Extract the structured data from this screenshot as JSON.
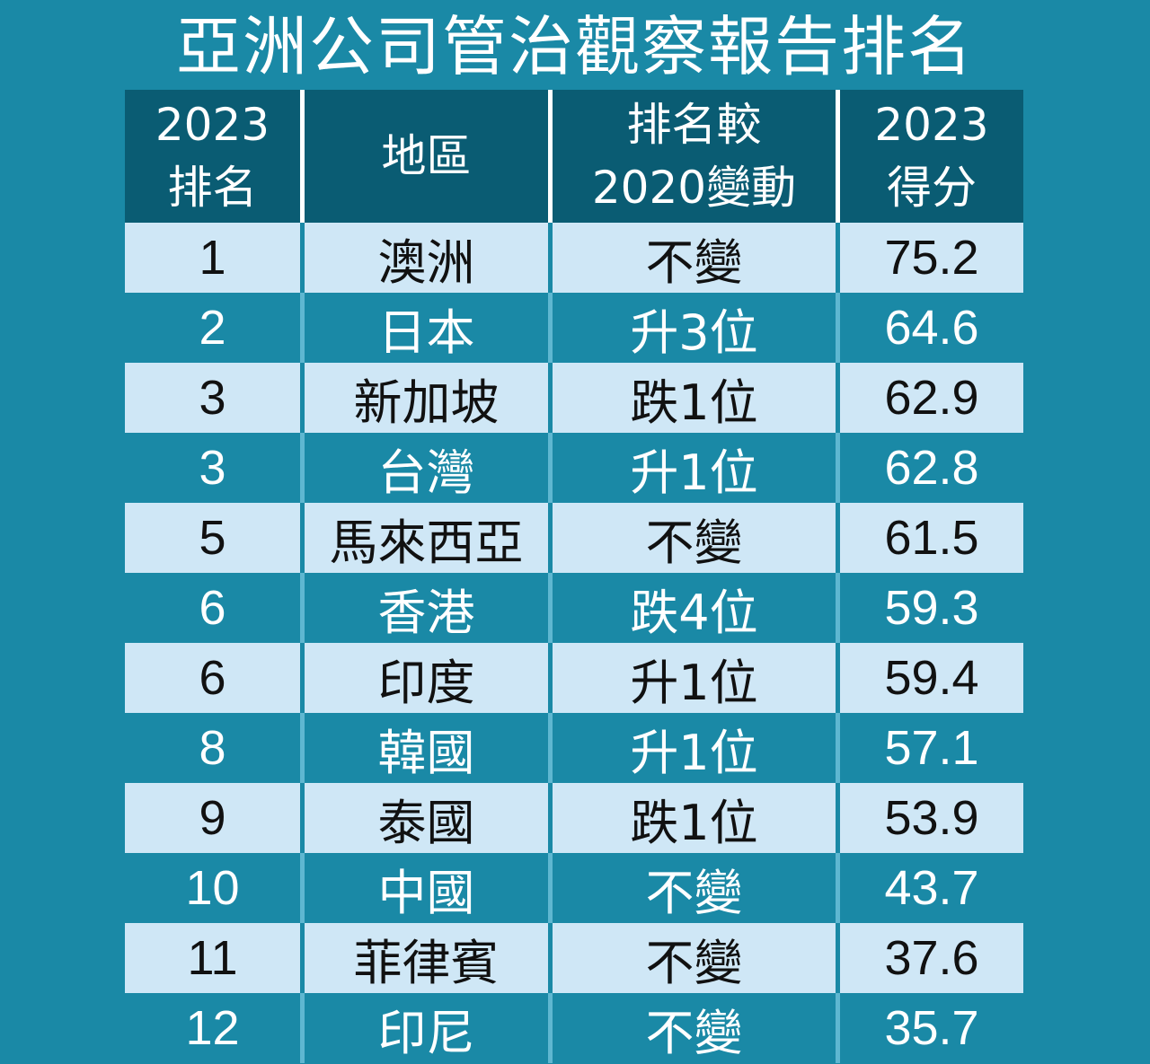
{
  "title": "亞洲公司管治觀察報告排名",
  "chart_data": {
    "type": "table",
    "columns": [
      "2023\n排名",
      "地區",
      "排名較\n2020變動",
      "2023\n得分"
    ],
    "rows": [
      {
        "rank": "1",
        "region": "澳洲",
        "change": "不變",
        "score": "75.2"
      },
      {
        "rank": "2",
        "region": "日本",
        "change": "升3位",
        "score": "64.6"
      },
      {
        "rank": "3",
        "region": "新加坡",
        "change": "跌1位",
        "score": "62.9"
      },
      {
        "rank": "3",
        "region": "台灣",
        "change": "升1位",
        "score": "62.8"
      },
      {
        "rank": "5",
        "region": "馬來西亞",
        "change": "不變",
        "score": "61.5"
      },
      {
        "rank": "6",
        "region": "香港",
        "change": "跌4位",
        "score": "59.3"
      },
      {
        "rank": "6",
        "region": "印度",
        "change": "升1位",
        "score": "59.4"
      },
      {
        "rank": "8",
        "region": "韓國",
        "change": "升1位",
        "score": "57.1"
      },
      {
        "rank": "9",
        "region": "泰國",
        "change": "跌1位",
        "score": "53.9"
      },
      {
        "rank": "10",
        "region": "中國",
        "change": "不變",
        "score": "43.7"
      },
      {
        "rank": "11",
        "region": "菲律賓",
        "change": "不變",
        "score": "37.6"
      },
      {
        "rank": "12",
        "region": "印尼",
        "change": "不變",
        "score": "35.7"
      }
    ]
  },
  "colors": {
    "background": "#1a89a6",
    "header": "#0a5c73",
    "light_row": "#cfe7f6"
  }
}
